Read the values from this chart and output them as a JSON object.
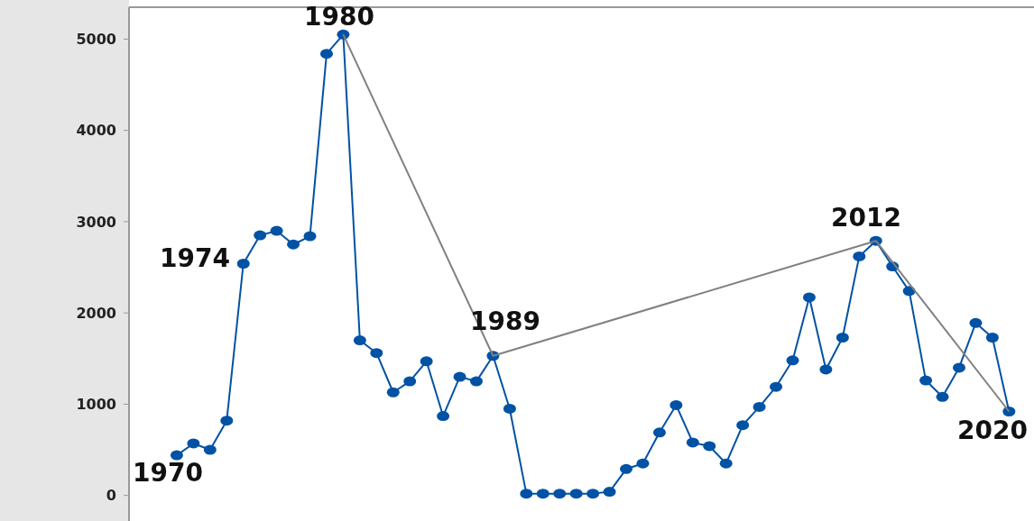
{
  "chart_data": {
    "type": "line",
    "categories": [
      null,
      null,
      null,
      null,
      null,
      null,
      null,
      null,
      null,
      null,
      null,
      null,
      null,
      null,
      null,
      null,
      null,
      null,
      null,
      null,
      null,
      null,
      null,
      null,
      null,
      null,
      null,
      null,
      null,
      null,
      null,
      null,
      null,
      null,
      null,
      null,
      null,
      null,
      null,
      null,
      null,
      null,
      null,
      null,
      null,
      null,
      null,
      null,
      null,
      null,
      null
    ],
    "ylim": [
      -280,
      5350
    ],
    "yticks": [
      0,
      1000,
      2000,
      3000,
      4000,
      5000
    ],
    "grid": false,
    "line_style": "solid",
    "series": [
      {
        "color": "#0052a5",
        "marker": "circle",
        "values": [
          440,
          570,
          500,
          820,
          2540,
          2850,
          2900,
          2750,
          2840,
          4840,
          5050,
          1700,
          1560,
          1130,
          1250,
          1470,
          870,
          1300,
          1250,
          1530,
          950,
          20,
          20,
          20,
          20,
          20,
          40,
          290,
          350,
          690,
          990,
          580,
          540,
          350,
          770,
          970,
          1190,
          1480,
          2170,
          1380,
          1730,
          2620,
          2790,
          2510,
          2240,
          1260,
          1080,
          1400,
          1890,
          1730,
          920
        ]
      },
      {
        "color": "#808080",
        "marker": "none",
        "values": [
          null,
          null,
          null,
          null,
          null,
          null,
          null,
          null,
          null,
          null,
          5050,
          null,
          null,
          null,
          null,
          null,
          null,
          null,
          null,
          1530,
          null,
          null,
          null,
          null,
          null,
          null,
          null,
          null,
          null,
          null,
          null,
          null,
          null,
          null,
          null,
          null,
          null,
          null,
          null,
          null,
          null,
          null,
          2790,
          null,
          null,
          null,
          null,
          null,
          null,
          null,
          920
        ]
      }
    ],
    "annotations": [
      "1970",
      "1974",
      "1980",
      "1989",
      "2012",
      "2020"
    ]
  }
}
